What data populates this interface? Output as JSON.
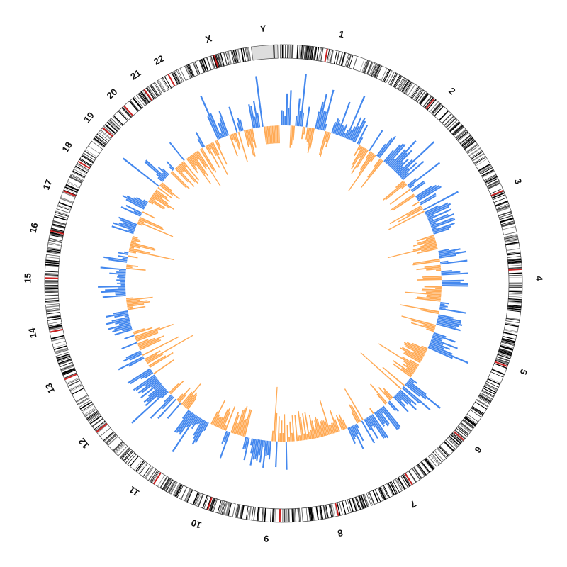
{
  "diagram": {
    "type": "circos",
    "chromosomes": [
      {
        "label": "1",
        "size": 249
      },
      {
        "label": "2",
        "size": 243
      },
      {
        "label": "3",
        "size": 198
      },
      {
        "label": "4",
        "size": 191
      },
      {
        "label": "5",
        "size": 181
      },
      {
        "label": "6",
        "size": 171
      },
      {
        "label": "7",
        "size": 159
      },
      {
        "label": "8",
        "size": 146
      },
      {
        "label": "9",
        "size": 141
      },
      {
        "label": "10",
        "size": 136
      },
      {
        "label": "11",
        "size": 135
      },
      {
        "label": "12",
        "size": 134
      },
      {
        "label": "13",
        "size": 115
      },
      {
        "label": "14",
        "size": 107
      },
      {
        "label": "15",
        "size": 103
      },
      {
        "label": "16",
        "size": 90
      },
      {
        "label": "17",
        "size": 81
      },
      {
        "label": "18",
        "size": 78
      },
      {
        "label": "19",
        "size": 59
      },
      {
        "label": "20",
        "size": 63
      },
      {
        "label": "21",
        "size": 48
      },
      {
        "label": "22",
        "size": 51
      },
      {
        "label": "X",
        "size": 155
      },
      {
        "label": "Y",
        "size": 57
      }
    ],
    "colors": {
      "gain": "#4488ee",
      "loss": "#ffaa55",
      "band_dark": "#000000",
      "band_light": "#ffffff",
      "centromere": "#cc2222",
      "chr_y": "#dddddd",
      "outline": "#555555"
    }
  }
}
